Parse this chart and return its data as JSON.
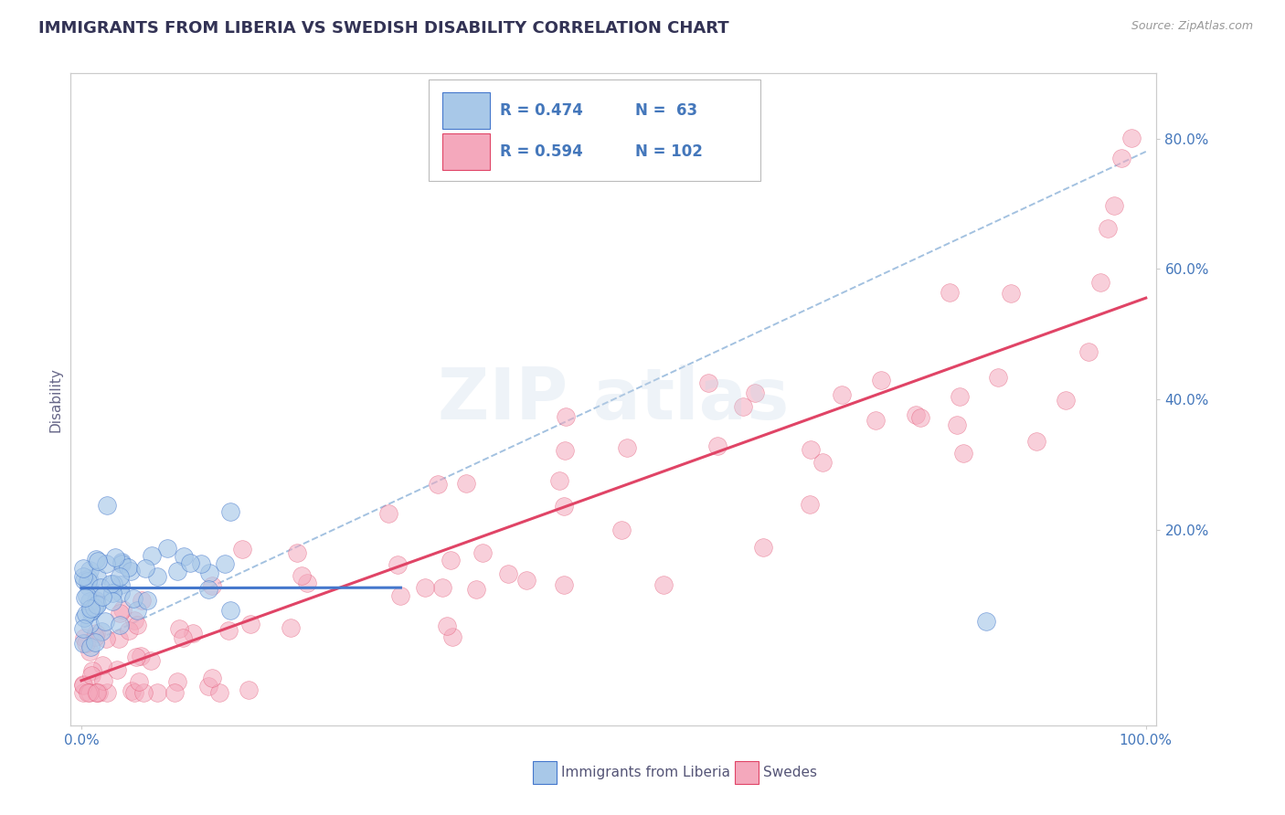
{
  "title": "IMMIGRANTS FROM LIBERIA VS SWEDISH DISABILITY CORRELATION CHART",
  "source": "Source: ZipAtlas.com",
  "ylabel": "Disability",
  "legend_label1": "Immigrants from Liberia",
  "legend_label2": "Swedes",
  "R1": 0.474,
  "N1": 63,
  "R2": 0.594,
  "N2": 102,
  "color1": "#a8c8e8",
  "color2": "#f4a8bc",
  "line_color1": "#4477cc",
  "line_color2": "#e04466",
  "dashed_color": "#99bbdd",
  "xlim": [
    0.0,
    1.0
  ],
  "ylim": [
    -0.1,
    0.9
  ],
  "background_color": "#ffffff",
  "grid_color": "#cccccc",
  "title_color": "#333355",
  "axis_label_color": "#4477bb",
  "yticks_right": [
    0.2,
    0.4,
    0.6,
    0.8
  ],
  "ytick_labels_right": [
    "20.0%",
    "40.0%",
    "60.0%",
    "80.0%"
  ],
  "seed": 42
}
